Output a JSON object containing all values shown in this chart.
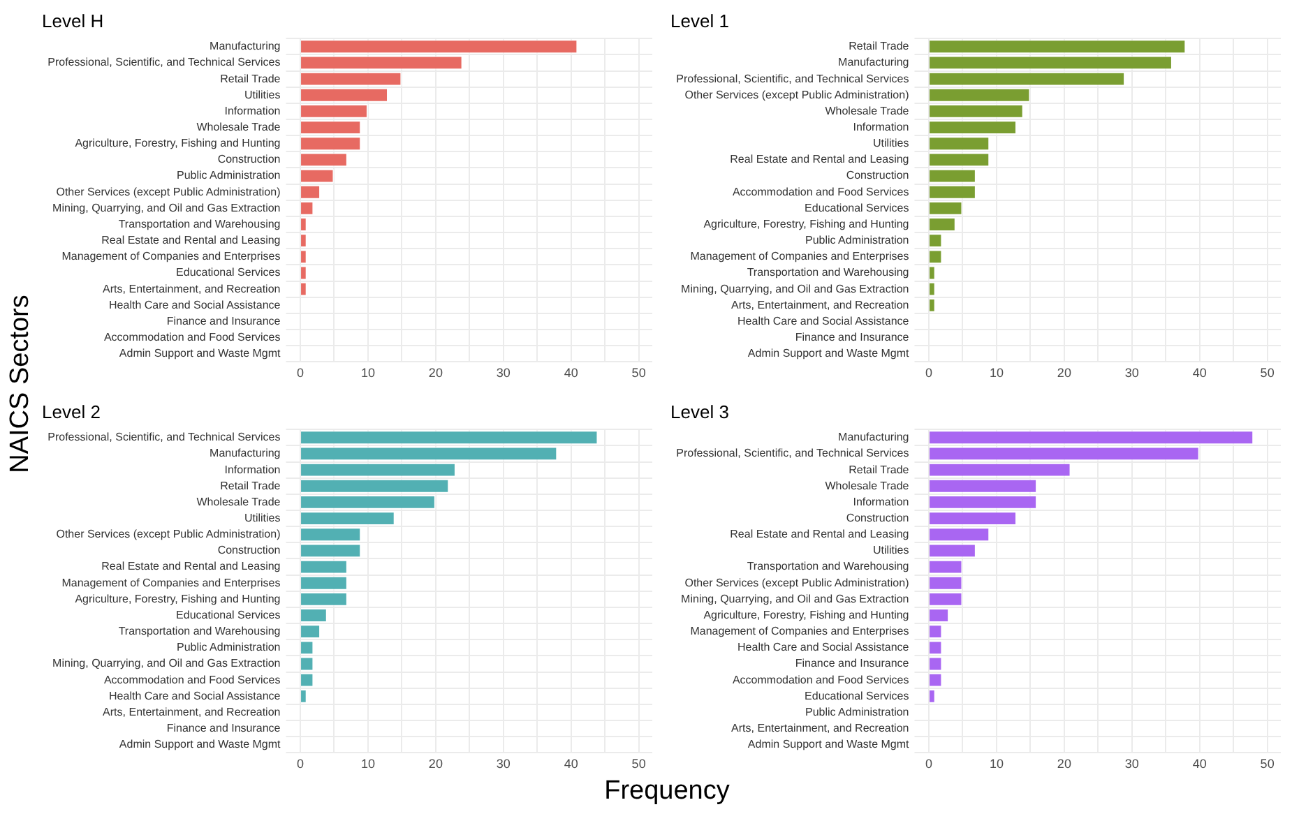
{
  "chart_data": [
    {
      "type": "bar",
      "orientation": "horizontal",
      "title": "Level H",
      "xlabel": "Frequency",
      "ylabel": "NAICS Sectors",
      "color": "#e76a62",
      "grid": true,
      "xlim": [
        -1.5,
        52
      ],
      "xticks": [
        0,
        {
          "value": 5,
          "label": null
        },
        10,
        {
          "value": 15,
          "label": null
        },
        20,
        {
          "value": 25,
          "label": null
        },
        30,
        {
          "value": 35,
          "label": null
        },
        40,
        {
          "value": 45,
          "label": null
        },
        50
      ],
      "categories": [
        "Manufacturing",
        "Professional, Scientific, and Technical Services",
        "Retail Trade",
        "Utilities",
        "Information",
        "Wholesale Trade",
        "Agriculture, Forestry, Fishing and Hunting",
        "Construction",
        "Public Administration",
        "Other Services (except Public Administration)",
        "Mining, Quarrying, and Oil and Gas Extraction",
        "Transportation and Warehousing",
        "Real Estate and Rental and Leasing",
        "Management of Companies and Enterprises",
        "Educational Services",
        "Arts, Entertainment, and Recreation",
        "Health Care and Social Assistance",
        "Finance and Insurance",
        "Accommodation and Food Services",
        "Admin Support and Waste Mgmt"
      ],
      "values": [
        41,
        24,
        15,
        13,
        10,
        9,
        9,
        7,
        5,
        3,
        2,
        1,
        1,
        1,
        1,
        1,
        0,
        0,
        0,
        0
      ]
    },
    {
      "type": "bar",
      "orientation": "horizontal",
      "title": "Level 1",
      "color": "#7a9e31",
      "grid": true,
      "xlim": [
        -1.5,
        52
      ],
      "xticks": [
        0,
        {
          "value": 5,
          "label": null
        },
        10,
        {
          "value": 15,
          "label": null
        },
        20,
        {
          "value": 25,
          "label": null
        },
        30,
        {
          "value": 35,
          "label": null
        },
        40,
        {
          "value": 45,
          "label": null
        },
        50
      ],
      "categories": [
        "Retail Trade",
        "Manufacturing",
        "Professional, Scientific, and Technical Services",
        "Other Services (except Public Administration)",
        "Wholesale Trade",
        "Information",
        "Utilities",
        "Real Estate and Rental and Leasing",
        "Construction",
        "Accommodation and Food Services",
        "Educational Services",
        "Agriculture, Forestry, Fishing and Hunting",
        "Public Administration",
        "Management of Companies and Enterprises",
        "Transportation and Warehousing",
        "Mining, Quarrying, and Oil and Gas Extraction",
        "Arts, Entertainment, and Recreation",
        "Health Care and Social Assistance",
        "Finance and Insurance",
        "Admin Support and Waste Mgmt"
      ],
      "values": [
        38,
        36,
        29,
        15,
        14,
        13,
        9,
        9,
        7,
        7,
        5,
        4,
        2,
        2,
        1,
        1,
        1,
        0,
        0,
        0
      ]
    },
    {
      "type": "bar",
      "orientation": "horizontal",
      "title": "Level 2",
      "color": "#52b0b3",
      "grid": true,
      "xlim": [
        -1.5,
        52
      ],
      "xticks": [
        0,
        {
          "value": 5,
          "label": null
        },
        10,
        {
          "value": 15,
          "label": null
        },
        20,
        {
          "value": 25,
          "label": null
        },
        30,
        {
          "value": 35,
          "label": null
        },
        40,
        {
          "value": 45,
          "label": null
        },
        50
      ],
      "categories": [
        "Professional, Scientific, and Technical Services",
        "Manufacturing",
        "Information",
        "Retail Trade",
        "Wholesale Trade",
        "Utilities",
        "Other Services (except Public Administration)",
        "Construction",
        "Real Estate and Rental and Leasing",
        "Management of Companies and Enterprises",
        "Agriculture, Forestry, Fishing and Hunting",
        "Educational Services",
        "Transportation and Warehousing",
        "Public Administration",
        "Mining, Quarrying, and Oil and Gas Extraction",
        "Accommodation and Food Services",
        "Health Care and Social Assistance",
        "Arts, Entertainment, and Recreation",
        "Finance and Insurance",
        "Admin Support and Waste Mgmt"
      ],
      "values": [
        44,
        38,
        23,
        22,
        20,
        14,
        9,
        9,
        7,
        7,
        7,
        4,
        3,
        2,
        2,
        2,
        1,
        0,
        0,
        0
      ]
    },
    {
      "type": "bar",
      "orientation": "horizontal",
      "title": "Level 3",
      "color": "#a966f2",
      "grid": true,
      "xlim": [
        -1.5,
        52
      ],
      "xticks": [
        0,
        {
          "value": 5,
          "label": null
        },
        10,
        {
          "value": 15,
          "label": null
        },
        20,
        {
          "value": 25,
          "label": null
        },
        30,
        {
          "value": 35,
          "label": null
        },
        40,
        {
          "value": 45,
          "label": null
        },
        50
      ],
      "categories": [
        "Manufacturing",
        "Professional, Scientific, and Technical Services",
        "Retail Trade",
        "Wholesale Trade",
        "Information",
        "Construction",
        "Real Estate and Rental and Leasing",
        "Utilities",
        "Transportation and Warehousing",
        "Other Services (except Public Administration)",
        "Mining, Quarrying, and Oil and Gas Extraction",
        "Agriculture, Forestry, Fishing and Hunting",
        "Management of Companies and Enterprises",
        "Health Care and Social Assistance",
        "Finance and Insurance",
        "Accommodation and Food Services",
        "Educational Services",
        "Public Administration",
        "Arts, Entertainment, and Recreation",
        "Admin Support and Waste Mgmt"
      ],
      "values": [
        48,
        40,
        21,
        16,
        16,
        13,
        9,
        7,
        5,
        5,
        5,
        3,
        2,
        2,
        2,
        2,
        1,
        0,
        0,
        0
      ]
    }
  ]
}
